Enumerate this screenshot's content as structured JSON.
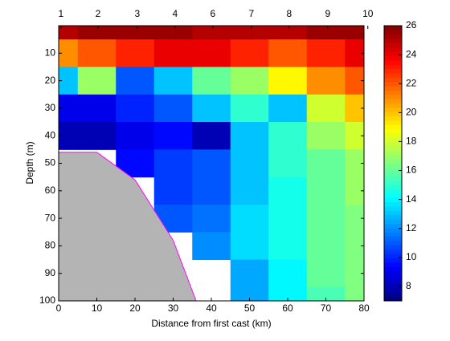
{
  "chart_data": {
    "type": "contour",
    "xlabel": "Distance from first cast (km)",
    "ylabel": "Depth (m)",
    "x": [
      0,
      10,
      20,
      30,
      40,
      50,
      60,
      70,
      80
    ],
    "depth": [
      0,
      10,
      20,
      30,
      40,
      50,
      60,
      70,
      80,
      90,
      100
    ],
    "z": [
      [
        25,
        25.5,
        25.5,
        25.5,
        25,
        25,
        25,
        25.5,
        25.5
      ],
      [
        21,
        22,
        23,
        24,
        24,
        23,
        22,
        23,
        24
      ],
      [
        13,
        17,
        11,
        13,
        16,
        17,
        19,
        21,
        22
      ],
      [
        9,
        9,
        10,
        11,
        13,
        15,
        13,
        18,
        20
      ],
      [
        8,
        8,
        9,
        9.5,
        8,
        13,
        15,
        17,
        18
      ],
      [
        null,
        null,
        9.5,
        10.5,
        11,
        13,
        15,
        16,
        17
      ],
      [
        null,
        null,
        null,
        10.5,
        11,
        13,
        14.5,
        16,
        17
      ],
      [
        null,
        null,
        null,
        11,
        11.5,
        13.5,
        14.5,
        16,
        16.5
      ],
      [
        null,
        null,
        null,
        null,
        12,
        13.5,
        14.5,
        16,
        16.5
      ],
      [
        null,
        null,
        null,
        null,
        null,
        12.5,
        14,
        16,
        16.5
      ],
      [
        null,
        null,
        null,
        null,
        null,
        12.5,
        14,
        15.5,
        16.5
      ]
    ],
    "xlim": [
      0,
      80
    ],
    "ylim": [
      0,
      100
    ],
    "xticks": [
      0,
      10,
      20,
      30,
      40,
      50,
      60,
      70,
      80
    ],
    "yticks": [
      10,
      20,
      30,
      40,
      50,
      60,
      70,
      80,
      90,
      100
    ],
    "top_ticks": [
      {
        "value": 0.6,
        "label": "1"
      },
      {
        "value": 10.3,
        "label": "2"
      },
      {
        "value": 20.6,
        "label": "3"
      },
      {
        "value": 30.5,
        "label": "4"
      },
      {
        "value": 40.4,
        "label": "6"
      },
      {
        "value": 50.5,
        "label": "7"
      },
      {
        "value": 60.4,
        "label": "8"
      },
      {
        "value": 70.5,
        "label": "9"
      },
      {
        "value": 81,
        "label": "10"
      }
    ],
    "colormap": "jet",
    "clim": [
      7,
      26
    ],
    "cticks": [
      8,
      10,
      12,
      14,
      16,
      18,
      20,
      22,
      24,
      26
    ],
    "bottom": {
      "x": [
        0,
        10,
        20,
        30,
        36
      ],
      "depth": [
        46,
        46,
        56,
        78,
        100
      ],
      "color": "#b4b4b4",
      "edge_color": "#ff00ff"
    }
  }
}
